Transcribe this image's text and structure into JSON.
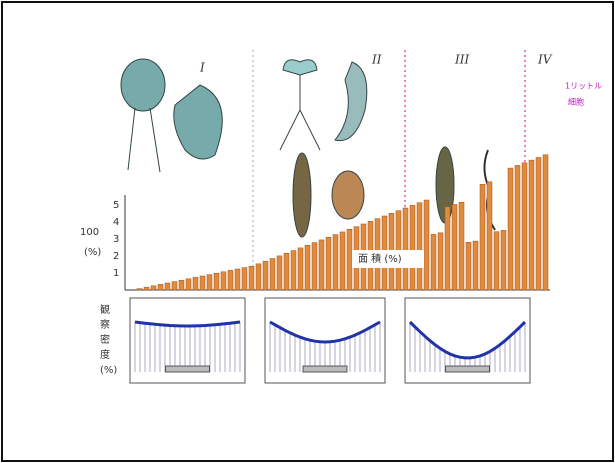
{
  "stages": [
    "I",
    "II",
    "III",
    "IV"
  ],
  "note": [
    "1リットル",
    "細胞"
  ],
  "top_axis": {
    "label": "100",
    "unit": "(%)",
    "ticks": [
      "5",
      "4",
      "3",
      "2",
      "1"
    ]
  },
  "bar_label": "面 積 (%)",
  "lower_axis": {
    "label": [
      "観",
      "察",
      "密",
      "度",
      "(%)"
    ]
  }
}
